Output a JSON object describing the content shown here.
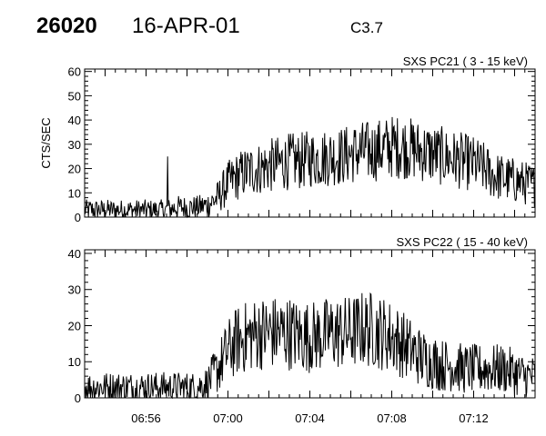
{
  "header": {
    "event_id": "26020",
    "date": "16-APR-01",
    "flare_class": "C3.7"
  },
  "chart_data": [
    {
      "type": "line",
      "title": "SXS PC21  (  3 - 15 keV)",
      "ylabel": "CTS/SEC",
      "xlabel": "",
      "x_start": "06:53",
      "x_end": "07:15",
      "xlim_minutes": [
        0,
        22
      ],
      "ylim": [
        0,
        61
      ],
      "yticks": [
        0,
        10,
        20,
        30,
        40,
        50,
        60
      ],
      "grid": false,
      "series": [
        {
          "values_every_30s": [
            3,
            3,
            3,
            3,
            3,
            3,
            3,
            3,
            3,
            4,
            4,
            4,
            5,
            8,
            14,
            17,
            19,
            20,
            21,
            22,
            23,
            23,
            24,
            24,
            25,
            25,
            26,
            27,
            27,
            28,
            29,
            29,
            28,
            27,
            26,
            25,
            24,
            23,
            22,
            20,
            17,
            16,
            15,
            14,
            13
          ]
        }
      ]
    },
    {
      "type": "line",
      "title": "SXS PC22  ( 15 - 40 keV)",
      "ylabel": "",
      "xlabel": "",
      "x_start": "06:53",
      "x_end": "07:15",
      "xlim_minutes": [
        0,
        22
      ],
      "ylim": [
        0,
        41
      ],
      "yticks": [
        0,
        10,
        20,
        30,
        40
      ],
      "grid": false,
      "xtick_labels": [
        "06:56",
        "07:00",
        "07:04",
        "07:08",
        "07:12"
      ],
      "series": [
        {
          "values_every_30s": [
            3,
            3,
            3,
            3,
            3,
            3,
            3,
            3,
            3,
            3,
            3,
            3,
            4,
            8,
            13,
            16,
            17,
            18,
            18,
            18,
            18,
            17,
            17,
            17,
            18,
            18,
            18,
            19,
            19,
            18,
            17,
            15,
            13,
            11,
            10,
            9,
            9,
            8,
            8,
            8,
            8,
            8,
            7,
            6,
            6
          ]
        }
      ]
    }
  ]
}
